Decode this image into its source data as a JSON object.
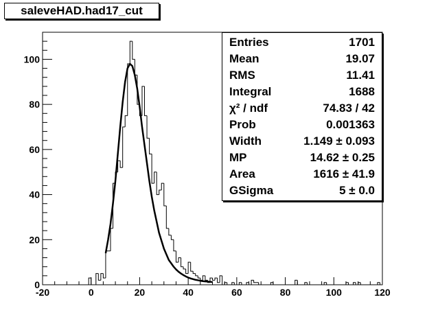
{
  "title": "saleveHAD.had17_cut",
  "stats": [
    {
      "label": "Entries",
      "value": "1701"
    },
    {
      "label": "Mean",
      "value": "19.07"
    },
    {
      "label": "RMS",
      "value": "11.41"
    },
    {
      "label": "Integral",
      "value": "1688"
    },
    {
      "label": "χ² / ndf",
      "value": "74.83 / 42"
    },
    {
      "label": "Prob",
      "value": "0.001363"
    },
    {
      "label": "Width",
      "value": "1.149 ± 0.093"
    },
    {
      "label": "MP",
      "value": "14.62 ± 0.25"
    },
    {
      "label": "Area",
      "value": "1616 ± 41.9"
    },
    {
      "label": "GSigma",
      "value": "5 ± 0.0"
    }
  ],
  "chart_data": {
    "type": "histogram",
    "title": "saleveHAD.had17_cut",
    "xlabel": "",
    "ylabel": "",
    "xlim": [
      -20,
      120
    ],
    "ylim": [
      0,
      112
    ],
    "bin_width": 1,
    "x_ticks": [
      -20,
      0,
      20,
      40,
      60,
      80,
      100,
      120
    ],
    "y_ticks": [
      0,
      20,
      40,
      60,
      80,
      100
    ],
    "histogram": {
      "bins": [
        [
          -20,
          0
        ],
        [
          -19,
          0
        ],
        [
          -18,
          0
        ],
        [
          -17,
          0
        ],
        [
          -16,
          0
        ],
        [
          -15,
          0
        ],
        [
          -14,
          0
        ],
        [
          -13,
          0
        ],
        [
          -12,
          0
        ],
        [
          -11,
          0
        ],
        [
          -10,
          0
        ],
        [
          -9,
          0
        ],
        [
          -8,
          0
        ],
        [
          -7,
          0
        ],
        [
          -6,
          0
        ],
        [
          -5,
          0
        ],
        [
          -4,
          0
        ],
        [
          -3,
          0
        ],
        [
          -2,
          0
        ],
        [
          -1,
          3
        ],
        [
          0,
          0
        ],
        [
          1,
          0
        ],
        [
          2,
          5
        ],
        [
          3,
          2
        ],
        [
          4,
          5
        ],
        [
          5,
          3
        ],
        [
          6,
          15
        ],
        [
          7,
          15
        ],
        [
          8,
          25
        ],
        [
          9,
          45
        ],
        [
          10,
          50
        ],
        [
          11,
          55
        ],
        [
          12,
          52
        ],
        [
          13,
          70
        ],
        [
          14,
          75
        ],
        [
          15,
          98
        ],
        [
          16,
          108
        ],
        [
          17,
          100
        ],
        [
          18,
          93
        ],
        [
          19,
          80
        ],
        [
          20,
          75
        ],
        [
          21,
          88
        ],
        [
          22,
          75
        ],
        [
          23,
          65
        ],
        [
          24,
          58
        ],
        [
          25,
          45
        ],
        [
          26,
          50
        ],
        [
          27,
          40
        ],
        [
          28,
          42
        ],
        [
          29,
          45
        ],
        [
          30,
          35
        ],
        [
          31,
          25
        ],
        [
          32,
          22
        ],
        [
          33,
          20
        ],
        [
          34,
          15
        ],
        [
          35,
          10
        ],
        [
          36,
          12
        ],
        [
          37,
          8
        ],
        [
          38,
          7
        ],
        [
          39,
          5
        ],
        [
          40,
          10
        ],
        [
          41,
          6
        ],
        [
          42,
          5
        ],
        [
          43,
          4
        ],
        [
          44,
          3
        ],
        [
          45,
          2
        ],
        [
          46,
          4
        ],
        [
          47,
          2
        ],
        [
          48,
          1
        ],
        [
          49,
          3
        ],
        [
          50,
          2
        ],
        [
          51,
          3
        ],
        [
          52,
          1
        ],
        [
          53,
          4
        ],
        [
          54,
          0
        ],
        [
          55,
          1
        ],
        [
          56,
          0
        ],
        [
          57,
          0
        ],
        [
          58,
          1
        ],
        [
          59,
          0
        ],
        [
          60,
          0
        ],
        [
          61,
          1
        ],
        [
          62,
          0
        ],
        [
          63,
          0
        ],
        [
          64,
          1
        ],
        [
          65,
          0
        ],
        [
          66,
          2
        ],
        [
          67,
          1
        ],
        [
          68,
          1
        ],
        [
          69,
          0
        ],
        [
          70,
          0
        ],
        [
          71,
          0
        ],
        [
          72,
          0
        ],
        [
          73,
          0
        ],
        [
          74,
          1
        ],
        [
          75,
          0
        ],
        [
          76,
          0
        ],
        [
          77,
          0
        ],
        [
          78,
          0
        ],
        [
          79,
          0
        ],
        [
          80,
          0
        ],
        [
          81,
          0
        ],
        [
          82,
          0
        ],
        [
          83,
          0
        ],
        [
          84,
          2
        ],
        [
          85,
          0
        ],
        [
          86,
          0
        ],
        [
          87,
          0
        ],
        [
          88,
          1
        ],
        [
          89,
          0
        ],
        [
          90,
          0
        ],
        [
          91,
          0
        ],
        [
          92,
          0
        ],
        [
          93,
          0
        ],
        [
          94,
          0
        ],
        [
          95,
          0
        ],
        [
          96,
          1
        ],
        [
          97,
          0
        ],
        [
          98,
          0
        ],
        [
          99,
          0
        ],
        [
          100,
          0
        ],
        [
          101,
          0
        ],
        [
          102,
          0
        ],
        [
          103,
          0
        ],
        [
          104,
          0
        ],
        [
          105,
          1
        ],
        [
          106,
          0
        ],
        [
          107,
          0
        ],
        [
          108,
          1
        ],
        [
          109,
          0
        ],
        [
          110,
          1
        ],
        [
          111,
          0
        ],
        [
          112,
          0
        ],
        [
          113,
          0
        ],
        [
          114,
          0
        ],
        [
          115,
          0
        ],
        [
          116,
          0
        ],
        [
          117,
          0
        ],
        [
          118,
          1
        ],
        [
          119,
          0
        ]
      ]
    },
    "fit": {
      "type": "landau-gaussian convolution",
      "x_range": [
        6,
        50
      ],
      "points": [
        [
          6,
          14
        ],
        [
          7,
          20
        ],
        [
          8,
          27
        ],
        [
          9,
          36
        ],
        [
          10,
          46
        ],
        [
          11,
          58
        ],
        [
          12,
          70
        ],
        [
          13,
          81
        ],
        [
          14,
          90
        ],
        [
          15,
          96
        ],
        [
          16,
          98
        ],
        [
          17,
          97
        ],
        [
          18,
          93
        ],
        [
          19,
          87
        ],
        [
          20,
          79
        ],
        [
          21,
          70
        ],
        [
          22,
          62
        ],
        [
          23,
          54
        ],
        [
          24,
          46
        ],
        [
          25,
          39
        ],
        [
          26,
          33
        ],
        [
          27,
          28
        ],
        [
          28,
          23
        ],
        [
          29,
          19.5
        ],
        [
          30,
          16
        ],
        [
          31,
          13.5
        ],
        [
          32,
          11
        ],
        [
          33,
          9.5
        ],
        [
          34,
          8
        ],
        [
          35,
          6.8
        ],
        [
          36,
          5.8
        ],
        [
          37,
          5
        ],
        [
          38,
          4.3
        ],
        [
          39,
          3.7
        ],
        [
          40,
          3.2
        ],
        [
          41,
          2.8
        ],
        [
          42,
          2.5
        ],
        [
          43,
          2.2
        ],
        [
          44,
          2
        ],
        [
          45,
          1.8
        ],
        [
          46,
          1.6
        ],
        [
          47,
          1.5
        ],
        [
          48,
          1.4
        ],
        [
          49,
          1.3
        ],
        [
          50,
          1.2
        ]
      ]
    },
    "colors": {
      "line": "#000000",
      "background": "#ffffff"
    }
  }
}
